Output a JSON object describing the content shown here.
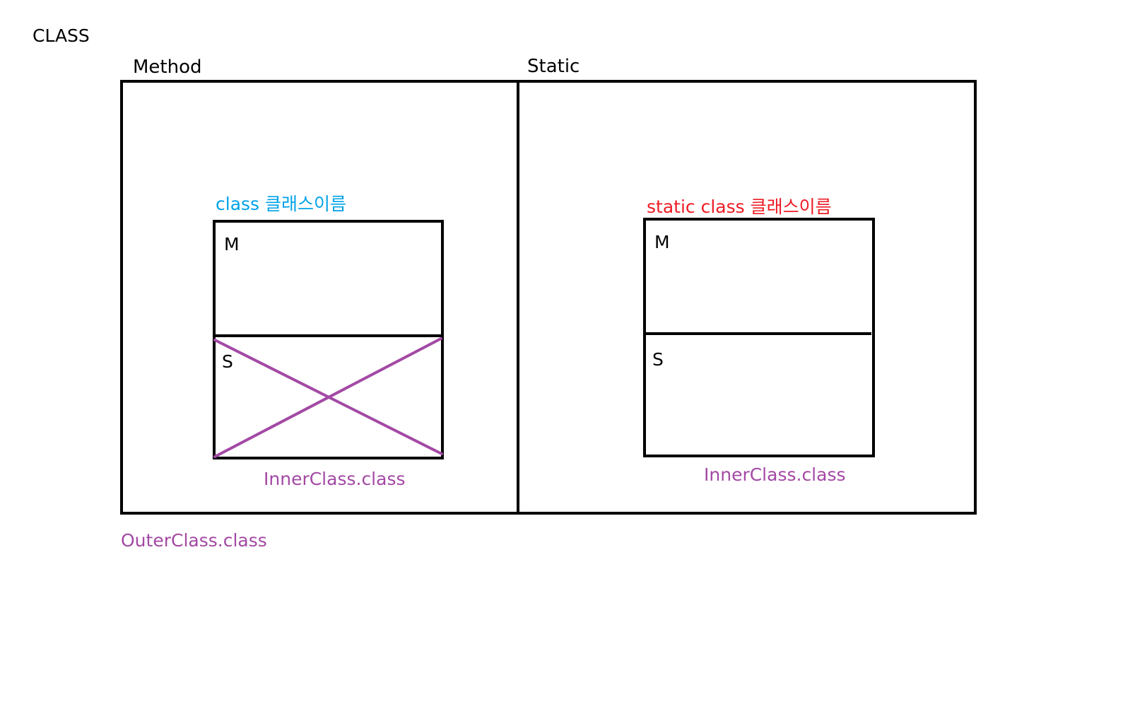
{
  "title": "CLASS",
  "outer": {
    "filename": "OuterClass.class",
    "filename_color": "#a349a4"
  },
  "method_section": {
    "label": "Method",
    "inner_declaration": "class 클래스이름",
    "declaration_color": "#00a2e8",
    "inner_box": {
      "member_label": "M",
      "static_label": "S",
      "static_area_crossed_out": true,
      "cross_color": "#a349a4"
    },
    "inner_filename": "InnerClass.class",
    "filename_color": "#a349a4"
  },
  "static_section": {
    "label": "Static",
    "inner_declaration": "static class 클래스이름",
    "declaration_color": "#ed1c24",
    "inner_box": {
      "member_label": "M",
      "static_label": "S",
      "static_area_crossed_out": false
    },
    "inner_filename": "InnerClass.class",
    "filename_color": "#a349a4"
  }
}
